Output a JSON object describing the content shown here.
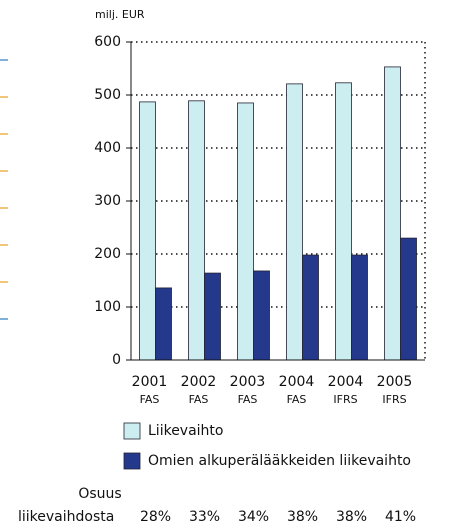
{
  "chart_data": {
    "type": "bar",
    "y_axis_label": "milj. EUR",
    "categories": [
      "2001",
      "2002",
      "2003",
      "2004",
      "2004",
      "2005"
    ],
    "subcategories": [
      "FAS",
      "FAS",
      "FAS",
      "FAS",
      "IFRS",
      "IFRS"
    ],
    "series": [
      {
        "name": "Liikevaihto",
        "color": "#cdeef0",
        "values": [
          487,
          489,
          485,
          521,
          523,
          553
        ]
      },
      {
        "name": "Omien alkuperälääkkeiden liikevaihto",
        "color": "#24388c",
        "values": [
          136,
          164,
          168,
          198,
          198,
          230
        ]
      }
    ],
    "ylim": [
      0,
      600
    ],
    "yticks": [
      0,
      100,
      200,
      300,
      400,
      500,
      600
    ],
    "grid": true,
    "share_title": [
      "Osuus",
      "liikevaihdosta"
    ],
    "share_values": [
      28,
      33,
      34,
      38,
      38,
      41
    ],
    "share_labels": [
      "28%",
      "33%",
      "34%",
      "38%",
      "38%",
      "41%"
    ]
  }
}
